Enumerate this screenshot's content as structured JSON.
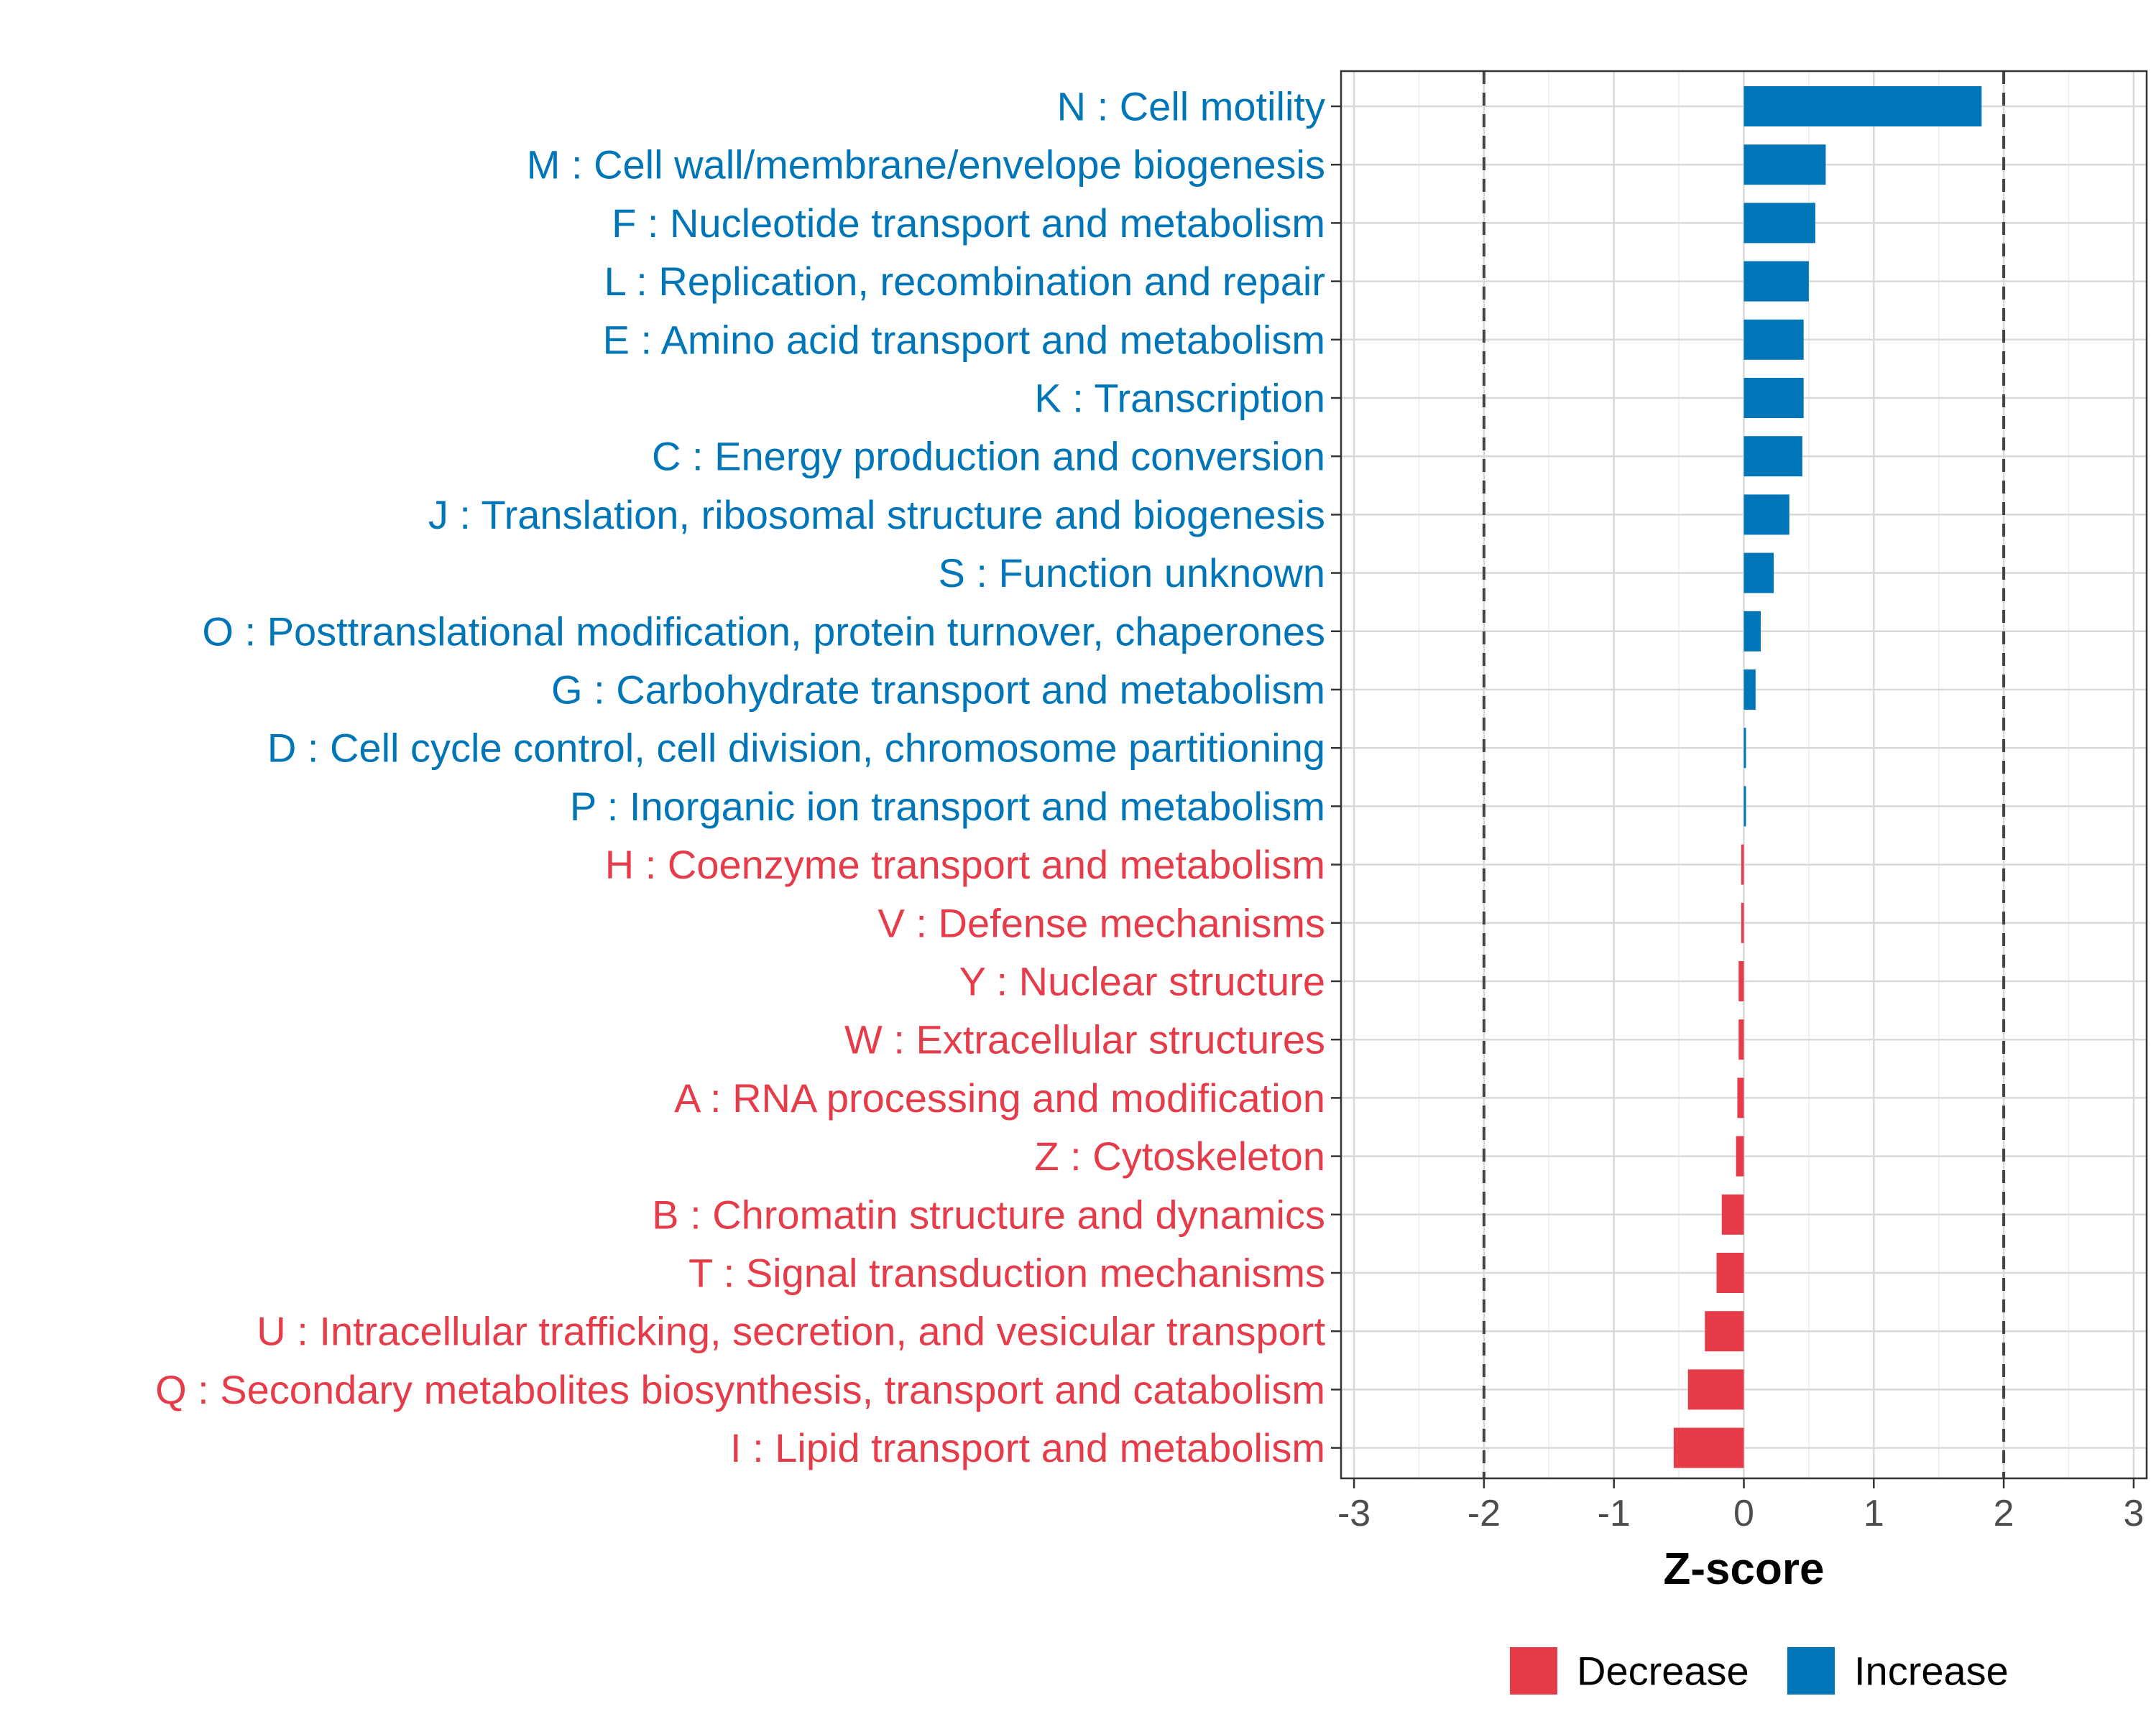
{
  "chart_data": {
    "type": "bar",
    "orientation": "horizontal",
    "xlabel": "Z-score",
    "xlim": [
      -3.1,
      3.1
    ],
    "xticks": [
      -3,
      -2,
      -1,
      0,
      1,
      2,
      3
    ],
    "xtick_labels": [
      "-3",
      "-2",
      "-1",
      "0",
      "1",
      "2",
      "3"
    ],
    "reference_lines": [
      -2,
      2
    ],
    "grid": true,
    "legend_position": "bottom",
    "colors": {
      "Decrease": "#E63C4A",
      "Increase": "#0076B8"
    },
    "legend": [
      {
        "label": "Decrease",
        "color": "#E63C4A"
      },
      {
        "label": "Increase",
        "color": "#0076B8"
      }
    ],
    "categories": [
      "N : Cell motility",
      "M : Cell wall/membrane/envelope biogenesis",
      "F : Nucleotide transport and metabolism",
      "L : Replication, recombination and repair",
      "E : Amino acid transport and metabolism",
      "K : Transcription",
      "C : Energy production and conversion",
      "J : Translation, ribosomal structure and biogenesis",
      "S : Function unknown",
      "O : Posttranslational modification, protein turnover, chaperones",
      "G : Carbohydrate transport and metabolism",
      "D : Cell cycle control, cell division, chromosome partitioning",
      "P : Inorganic ion transport and metabolism",
      "H : Coenzyme transport and metabolism",
      "V : Defense mechanisms",
      "Y : Nuclear structure",
      "W : Extracellular structures",
      "A : RNA processing and modification",
      "Z : Cytoskeleton",
      "B : Chromatin structure and dynamics",
      "T : Signal transduction mechanisms",
      "U : Intracellular trafficking, secretion, and vesicular transport",
      "Q : Secondary metabolites biosynthesis, transport and catabolism",
      "I : Lipid transport and metabolism"
    ],
    "values": [
      1.83,
      0.63,
      0.55,
      0.5,
      0.46,
      0.46,
      0.45,
      0.35,
      0.23,
      0.13,
      0.09,
      0.015,
      0.015,
      -0.02,
      -0.02,
      -0.04,
      -0.04,
      -0.05,
      -0.06,
      -0.17,
      -0.21,
      -0.3,
      -0.43,
      -0.54
    ],
    "groups": [
      "Increase",
      "Increase",
      "Increase",
      "Increase",
      "Increase",
      "Increase",
      "Increase",
      "Increase",
      "Increase",
      "Increase",
      "Increase",
      "Increase",
      "Increase",
      "Decrease",
      "Decrease",
      "Decrease",
      "Decrease",
      "Decrease",
      "Decrease",
      "Decrease",
      "Decrease",
      "Decrease",
      "Decrease",
      "Decrease"
    ]
  }
}
